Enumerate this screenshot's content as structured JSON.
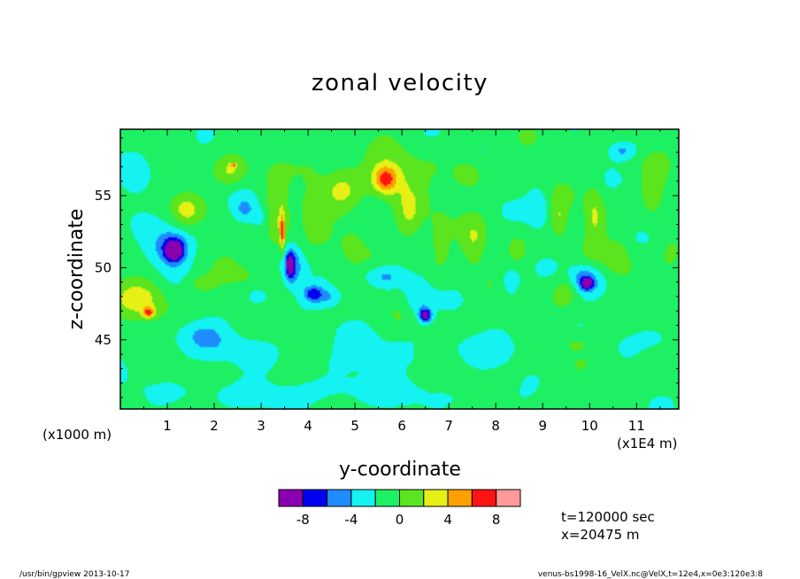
{
  "chart_data": {
    "type": "heatmap",
    "title": "zonal velocity",
    "xlabel": "y-coordinate",
    "ylabel": "z-coordinate",
    "x_units_label": "(x1000 m)",
    "x_units_label_right": "(x1E4 m)",
    "xlim": [
      0,
      11.9
    ],
    "ylim": [
      40.2,
      59.6
    ],
    "x_ticks": [
      "1",
      "2",
      "3",
      "4",
      "5",
      "6",
      "7",
      "8",
      "9",
      "10",
      "11"
    ],
    "y_ticks": [
      "45",
      "50",
      "55"
    ],
    "colorbar": {
      "levels": [
        -10,
        -8,
        -6,
        -4,
        -2,
        0,
        2,
        4,
        6,
        8,
        10
      ],
      "tick_labels": [
        "-8",
        "-4",
        "0",
        "4",
        "8"
      ],
      "tick_values": [
        -8,
        -4,
        0,
        4,
        8
      ],
      "colors": [
        "#8a00b0",
        "#0000ee",
        "#1e8cff",
        "#14f2f2",
        "#1ef064",
        "#5ae51e",
        "#e6f014",
        "#ffa000",
        "#ff1414",
        "#ff9a9a"
      ]
    },
    "background_value": -1,
    "features": [
      {
        "y": 0.35,
        "z": 56.5,
        "rx": 0.35,
        "rz": 1.6,
        "value": -3.2
      },
      {
        "y": 0.45,
        "z": 47.8,
        "rx": 0.55,
        "rz": 1.4,
        "value": 3.3
      },
      {
        "y": 0.6,
        "z": 46.9,
        "rx": 0.12,
        "rz": 0.35,
        "value": 6.5
      },
      {
        "y": 1.4,
        "z": 54.0,
        "rx": 0.28,
        "rz": 1.0,
        "value": 2.8
      },
      {
        "y": 1.05,
        "z": 51.4,
        "rx": 0.45,
        "rz": 1.4,
        "value": -4.5
      },
      {
        "y": 1.15,
        "z": 51.2,
        "rx": 0.2,
        "rz": 0.75,
        "value": -8.2
      },
      {
        "y": 1.75,
        "z": 48.9,
        "rx": 0.35,
        "rz": 0.6,
        "value": 2.2
      },
      {
        "y": 1.7,
        "z": 45.6,
        "rx": 0.5,
        "rz": 0.9,
        "value": -1.8
      },
      {
        "y": 2.35,
        "z": 56.6,
        "rx": 0.35,
        "rz": 1.0,
        "value": 3.3
      },
      {
        "y": 2.4,
        "z": 57.1,
        "rx": 0.06,
        "rz": 0.12,
        "value": 7.5
      },
      {
        "y": 2.65,
        "z": 54.0,
        "rx": 0.25,
        "rz": 0.9,
        "value": -3.0
      },
      {
        "y": 2.45,
        "z": 49.5,
        "rx": 0.3,
        "rz": 0.5,
        "value": 1.6
      },
      {
        "y": 2.95,
        "z": 48.0,
        "rx": 0.2,
        "rz": 0.5,
        "value": -3.2
      },
      {
        "y": 3.0,
        "z": 53.4,
        "rx": 0.2,
        "rz": 0.9,
        "value": -2.0
      },
      {
        "y": 3.35,
        "z": 53.3,
        "rx": 0.28,
        "rz": 2.8,
        "value": 3.2
      },
      {
        "y": 3.45,
        "z": 52.4,
        "rx": 0.05,
        "rz": 1.3,
        "value": 6.8
      },
      {
        "y": 3.65,
        "z": 50.0,
        "rx": 0.25,
        "rz": 1.5,
        "value": -4.3
      },
      {
        "y": 3.62,
        "z": 50.2,
        "rx": 0.09,
        "rz": 0.9,
        "value": -6.3
      },
      {
        "y": 3.8,
        "z": 55.5,
        "rx": 0.22,
        "rz": 0.8,
        "value": -2.5
      },
      {
        "y": 4.05,
        "z": 54.8,
        "rx": 0.25,
        "rz": 2.0,
        "value": 2.6
      },
      {
        "y": 4.1,
        "z": 48.2,
        "rx": 0.2,
        "rz": 0.55,
        "value": -5.5
      },
      {
        "y": 4.45,
        "z": 48.0,
        "rx": 0.3,
        "rz": 0.7,
        "value": -3.0
      },
      {
        "y": 4.7,
        "z": 55.6,
        "rx": 0.4,
        "rz": 1.8,
        "value": 3.1
      },
      {
        "y": 4.95,
        "z": 51.5,
        "rx": 0.2,
        "rz": 1.0,
        "value": 2.2
      },
      {
        "y": 5.7,
        "z": 56.3,
        "rx": 0.55,
        "rz": 1.5,
        "value": 3.4
      },
      {
        "y": 5.65,
        "z": 56.1,
        "rx": 0.24,
        "rz": 0.9,
        "value": 5.8
      },
      {
        "y": 6.15,
        "z": 53.6,
        "rx": 0.3,
        "rz": 2.3,
        "value": 2.8
      },
      {
        "y": 5.6,
        "z": 49.4,
        "rx": 0.45,
        "rz": 0.8,
        "value": -3.0
      },
      {
        "y": 6.35,
        "z": 47.8,
        "rx": 0.28,
        "rz": 1.4,
        "value": -3.1
      },
      {
        "y": 6.5,
        "z": 46.7,
        "rx": 0.13,
        "rz": 0.45,
        "value": -8.2
      },
      {
        "y": 6.8,
        "z": 52.0,
        "rx": 0.2,
        "rz": 1.6,
        "value": 2.3
      },
      {
        "y": 7.4,
        "z": 56.4,
        "rx": 0.3,
        "rz": 1.0,
        "value": 3.0
      },
      {
        "y": 7.55,
        "z": 51.8,
        "rx": 0.25,
        "rz": 1.6,
        "value": 2.6
      },
      {
        "y": 8.3,
        "z": 49.0,
        "rx": 0.25,
        "rz": 1.2,
        "value": -2.8
      },
      {
        "y": 8.45,
        "z": 51.2,
        "rx": 0.2,
        "rz": 0.9,
        "value": 2.2
      },
      {
        "y": 8.9,
        "z": 54.2,
        "rx": 0.25,
        "rz": 1.5,
        "value": -2.8
      },
      {
        "y": 9.35,
        "z": 53.4,
        "rx": 0.18,
        "rz": 1.3,
        "value": 2.9
      },
      {
        "y": 9.5,
        "z": 48.4,
        "rx": 0.25,
        "rz": 1.0,
        "value": 2.4
      },
      {
        "y": 9.9,
        "z": 49.2,
        "rx": 0.32,
        "rz": 1.0,
        "value": -4.5
      },
      {
        "y": 9.95,
        "z": 48.9,
        "rx": 0.12,
        "rz": 0.4,
        "value": -6.3
      },
      {
        "y": 10.1,
        "z": 53.6,
        "rx": 0.2,
        "rz": 2.3,
        "value": 3.1
      },
      {
        "y": 10.6,
        "z": 50.7,
        "rx": 0.25,
        "rz": 1.1,
        "value": 2.4
      },
      {
        "y": 10.7,
        "z": 58.1,
        "rx": 0.3,
        "rz": 0.6,
        "value": -3.2
      },
      {
        "y": 11.35,
        "z": 55.2,
        "rx": 0.25,
        "rz": 1.6,
        "value": 2.9
      },
      {
        "y": 11.75,
        "z": 51.0,
        "rx": 0.2,
        "rz": 1.0,
        "value": 2.2
      },
      {
        "y": 11.45,
        "z": 45.2,
        "rx": 0.45,
        "rz": 0.8,
        "value": -1.8
      },
      {
        "y": 2.1,
        "z": 44.5,
        "rx": 1.5,
        "rz": 1.3,
        "value": -1.8
      },
      {
        "y": 5.5,
        "z": 44.0,
        "rx": 1.2,
        "rz": 1.5,
        "value": -1.7
      },
      {
        "y": 8.0,
        "z": 44.6,
        "rx": 1.0,
        "rz": 1.1,
        "value": -1.7
      },
      {
        "y": 4.2,
        "z": 41.3,
        "rx": 3.5,
        "rz": 1.0,
        "value": -1.9
      },
      {
        "y": 6.6,
        "z": 44.3,
        "rx": 0.3,
        "rz": 0.6,
        "value": 1.5
      },
      {
        "y": 9.7,
        "z": 44.8,
        "rx": 0.3,
        "rz": 0.6,
        "value": 1.5
      }
    ]
  },
  "info": {
    "time_label": "t=120000 sec",
    "x_label": "x=20475 m"
  },
  "footer": {
    "left": "/usr/bin/gpview  2013-10-17",
    "right": "venus-bs1998-16_VelX.nc@VelX,t=12e4,x=0e3:120e3:8"
  }
}
